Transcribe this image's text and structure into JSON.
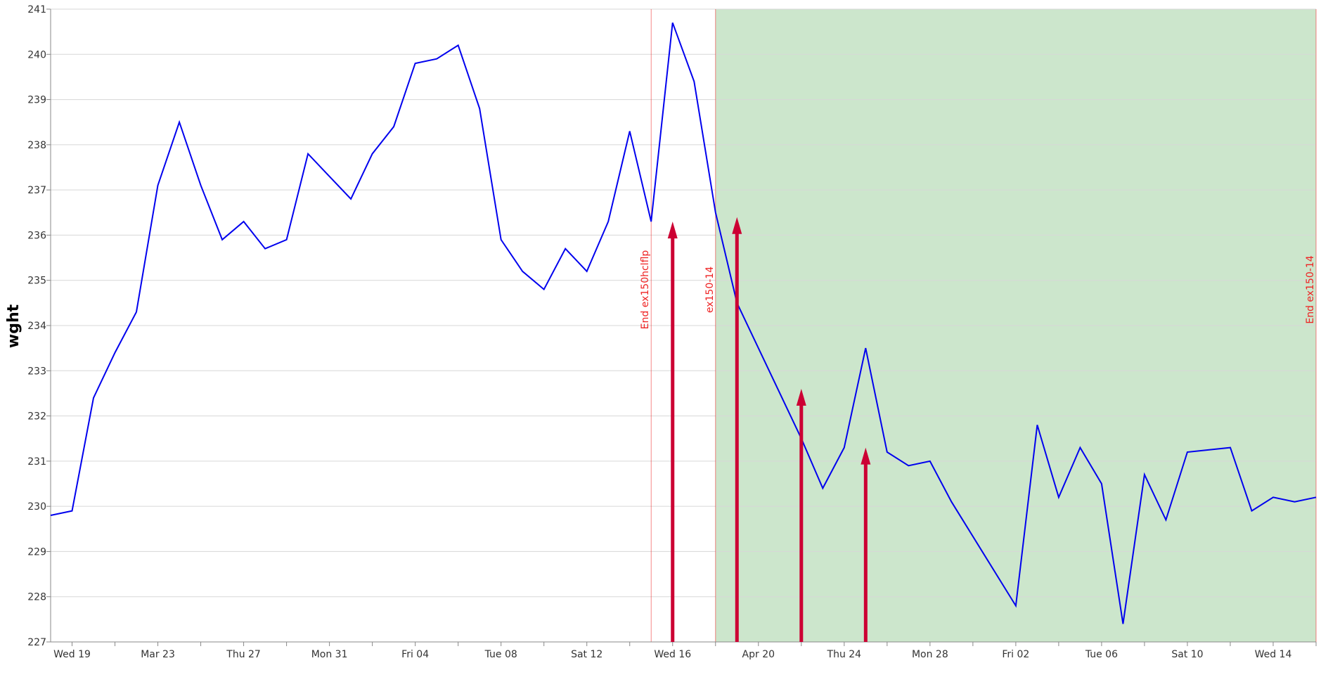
{
  "chart_data": {
    "type": "line",
    "ylabel": "wght",
    "xlabel": "",
    "ylim": [
      227,
      241
    ],
    "xlim": [
      "2025-03-18",
      "2025-05-16"
    ],
    "grid": true,
    "yticks": [
      227,
      228,
      229,
      230,
      231,
      232,
      233,
      234,
      235,
      236,
      237,
      238,
      239,
      240,
      241
    ],
    "xticks": [
      {
        "date": "2025-03-19",
        "label": "Wed 19"
      },
      {
        "date": "2025-03-21",
        "label": ""
      },
      {
        "date": "2025-03-23",
        "label": "Mar 23"
      },
      {
        "date": "2025-03-25",
        "label": ""
      },
      {
        "date": "2025-03-27",
        "label": "Thu 27"
      },
      {
        "date": "2025-03-29",
        "label": ""
      },
      {
        "date": "2025-03-31",
        "label": "Mon 31"
      },
      {
        "date": "2025-04-02",
        "label": ""
      },
      {
        "date": "2025-04-04",
        "label": "Fri 04"
      },
      {
        "date": "2025-04-06",
        "label": ""
      },
      {
        "date": "2025-04-08",
        "label": "Tue 08"
      },
      {
        "date": "2025-04-10",
        "label": ""
      },
      {
        "date": "2025-04-12",
        "label": "Sat 12"
      },
      {
        "date": "2025-04-14",
        "label": ""
      },
      {
        "date": "2025-04-16",
        "label": "Wed 16"
      },
      {
        "date": "2025-04-18",
        "label": ""
      },
      {
        "date": "2025-04-20",
        "label": "Apr 20"
      },
      {
        "date": "2025-04-22",
        "label": ""
      },
      {
        "date": "2025-04-24",
        "label": "Thu 24"
      },
      {
        "date": "2025-04-26",
        "label": ""
      },
      {
        "date": "2025-04-28",
        "label": "Mon 28"
      },
      {
        "date": "2025-04-30",
        "label": ""
      },
      {
        "date": "2025-05-02",
        "label": "Fri 02"
      },
      {
        "date": "2025-05-04",
        "label": ""
      },
      {
        "date": "2025-05-06",
        "label": "Tue 06"
      },
      {
        "date": "2025-05-08",
        "label": ""
      },
      {
        "date": "2025-05-10",
        "label": "Sat 10"
      },
      {
        "date": "2025-05-12",
        "label": ""
      },
      {
        "date": "2025-05-14",
        "label": "Wed 14"
      },
      {
        "date": "2025-05-16",
        "label": ""
      }
    ],
    "series": [
      {
        "color": "#0000ee",
        "x": [
          "2025-03-18",
          "2025-03-19",
          "2025-03-20",
          "2025-03-21",
          "2025-03-22",
          "2025-03-23",
          "2025-03-24",
          "2025-03-25",
          "2025-03-26",
          "2025-03-27",
          "2025-03-28",
          "2025-03-29",
          "2025-03-30",
          "2025-03-31",
          "2025-04-01",
          "2025-04-02",
          "2025-04-03",
          "2025-04-04",
          "2025-04-05",
          "2025-04-06",
          "2025-04-07",
          "2025-04-08",
          "2025-04-09",
          "2025-04-10",
          "2025-04-11",
          "2025-04-12",
          "2025-04-13",
          "2025-04-14",
          "2025-04-15",
          "2025-04-16",
          "2025-04-17",
          "2025-04-18",
          "2025-04-19",
          "2025-04-22",
          "2025-04-23",
          "2025-04-24",
          "2025-04-25",
          "2025-04-26",
          "2025-04-27",
          "2025-04-28",
          "2025-04-29",
          "2025-05-02",
          "2025-05-03",
          "2025-05-04",
          "2025-05-05",
          "2025-05-06",
          "2025-05-07",
          "2025-05-08",
          "2025-05-09",
          "2025-05-10",
          "2025-05-12",
          "2025-05-13",
          "2025-05-14",
          "2025-05-15",
          "2025-05-16"
        ],
        "y": [
          229.8,
          229.9,
          232.4,
          233.4,
          234.3,
          237.1,
          238.5,
          237.1,
          235.9,
          236.3,
          235.7,
          235.9,
          237.8,
          237.3,
          236.8,
          237.8,
          238.4,
          239.8,
          239.9,
          240.2,
          238.8,
          235.9,
          235.2,
          234.8,
          235.7,
          235.2,
          236.3,
          238.3,
          236.3,
          240.7,
          239.4,
          236.5,
          234.5,
          231.5,
          230.4,
          231.3,
          233.5,
          231.2,
          230.9,
          231.0,
          230.1,
          227.8,
          231.8,
          230.2,
          231.3,
          230.5,
          227.4,
          230.7,
          229.7,
          231.2,
          231.3,
          229.9,
          230.2,
          230.1,
          230.2
        ]
      }
    ],
    "shaded_region": {
      "from": "2025-04-18",
      "to": "2025-05-16",
      "color": "#cce6cc"
    },
    "vertical_markers": [
      {
        "date": "2025-04-15",
        "label": "End ex150hclflp",
        "color": "#ee2222"
      },
      {
        "date": "2025-04-18",
        "label": "ex150-14",
        "color": "#ee2222"
      },
      {
        "date": "2025-05-16",
        "label": "End ex150-14",
        "color": "#ee2222"
      }
    ],
    "arrows": [
      {
        "date": "2025-04-16",
        "y": 236.3,
        "color": "#cc0033"
      },
      {
        "date": "2025-04-19",
        "y": 236.4,
        "color": "#cc0033"
      },
      {
        "date": "2025-04-22",
        "y": 232.6,
        "color": "#cc0033"
      },
      {
        "date": "2025-04-25",
        "y": 231.3,
        "color": "#cc0033"
      }
    ]
  }
}
